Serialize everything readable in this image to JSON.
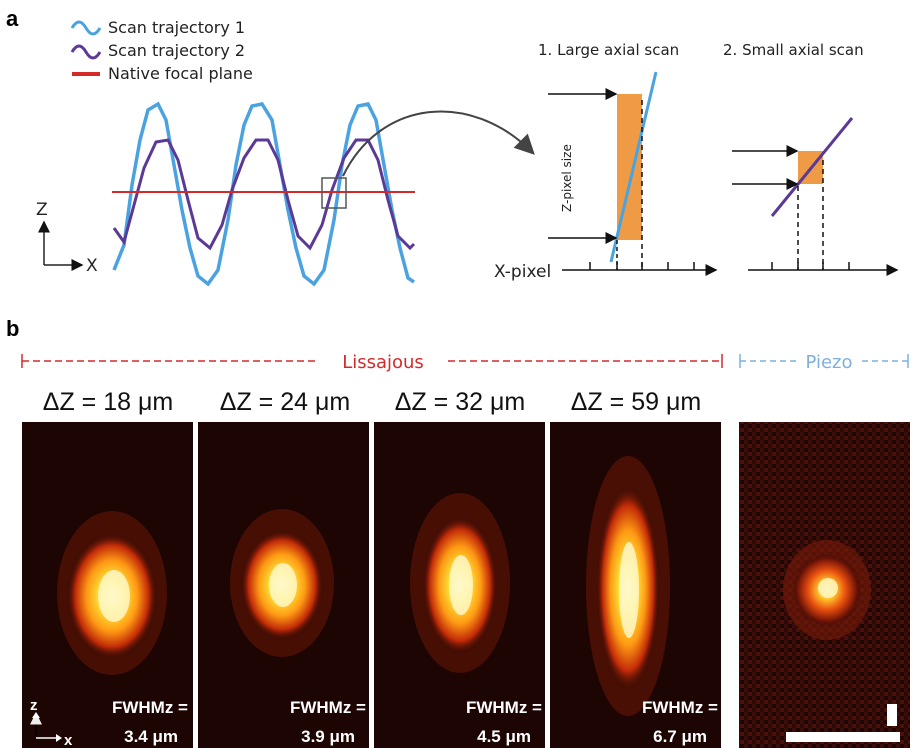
{
  "panel_a": {
    "label": "a",
    "legend": [
      {
        "text": "Scan trajectory 1",
        "color": "#4aa3e0"
      },
      {
        "text": "Scan trajectory 2",
        "color": "#5a3a96"
      },
      {
        "text": "Native focal plane",
        "color": "#d42a2a"
      }
    ],
    "axis_z": "Z",
    "axis_x": "X",
    "large_scan_title": "1. Large axial scan",
    "small_scan_title": "2. Small axial scan",
    "z_pixel_label": "Z-pixel size",
    "x_pixel_label": "X-pixel",
    "accent_orange": "#ef9a45"
  },
  "panel_b": {
    "label": "b",
    "lissajous_label": "Lissajous",
    "piezo_label": "Piezo",
    "lissajous_color": "#d42a2a",
    "piezo_color": "#7fb0dc",
    "images": [
      {
        "dz": "ΔZ = 18 μm",
        "fwhm_label": "FWHMz =",
        "fwhm_value": "3.4 μm"
      },
      {
        "dz": "ΔZ = 24 μm",
        "fwhm_label": "FWHMz =",
        "fwhm_value": "3.9 μm"
      },
      {
        "dz": "ΔZ = 32 μm",
        "fwhm_label": "FWHMz =",
        "fwhm_value": "4.5 μm"
      },
      {
        "dz": "ΔZ = 59 μm",
        "fwhm_label": "FWHMz =",
        "fwhm_value": "6.7 μm"
      }
    ],
    "inset_axis_z": "z",
    "inset_axis_x": "x"
  }
}
